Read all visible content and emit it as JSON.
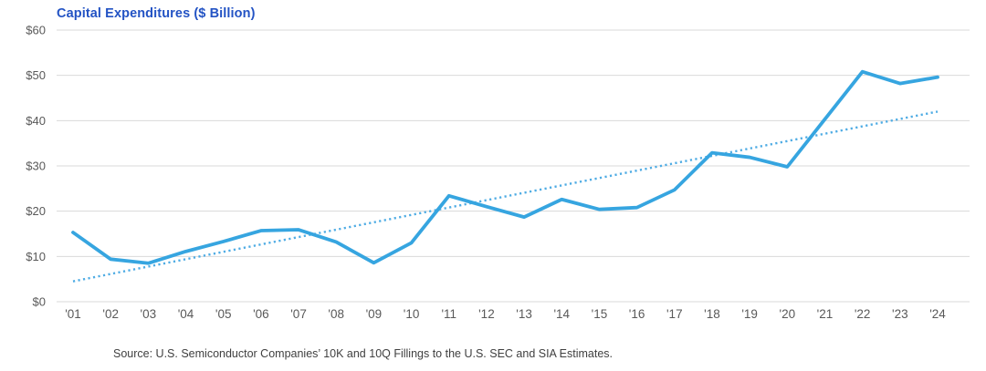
{
  "chart_data": {
    "type": "line",
    "title": "Capital Expenditures ($ Billion)",
    "categories": [
      "'01",
      "'02",
      "'03",
      "'04",
      "'05",
      "'06",
      "'07",
      "'08",
      "'09",
      "'10",
      "'11",
      "'12",
      "'13",
      "'14",
      "'15",
      "'16",
      "'17",
      "'18",
      "'19",
      "'20",
      "'21",
      "'22",
      "'23",
      "'24"
    ],
    "series": [
      {
        "name": "Capital Expenditures",
        "style": "solid",
        "values": [
          15.3,
          9.4,
          8.5,
          11.1,
          13.3,
          15.7,
          15.9,
          13.2,
          8.6,
          13.0,
          23.4,
          21.0,
          18.7,
          22.6,
          20.4,
          20.8,
          24.7,
          32.9,
          31.9,
          29.8,
          40.3,
          50.8,
          48.2,
          49.6
        ]
      }
    ],
    "trendline": {
      "style": "dotted",
      "start_value": 4.5,
      "end_value": 42.0
    },
    "xlabel": "",
    "ylabel": "",
    "ylim": [
      0,
      60
    ],
    "ytick_step": 10,
    "ytick_labels": [
      "$0",
      "$10",
      "$20",
      "$30",
      "$40",
      "$50",
      "$60"
    ],
    "grid": "horizontal",
    "legend": "none",
    "source": "Source: U.S. Semiconductor Companies’ 10K and 10Q Fillings to the U.S. SEC and SIA Estimates."
  },
  "colors": {
    "line": "#36A5E0",
    "trend": "#4FACE4",
    "title": "#2353C4",
    "axis_text": "#595959",
    "grid": "#D9D9D9",
    "source_text": "#404040",
    "background": "#FFFFFF"
  }
}
